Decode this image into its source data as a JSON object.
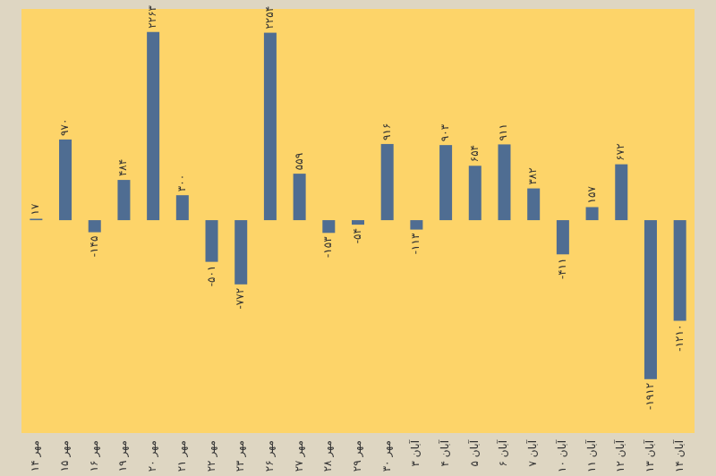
{
  "chart_data": {
    "type": "bar",
    "categories": [
      "۱۴ مهر",
      "۱۵ مهر",
      "۱۶ مهر",
      "۱۹ مهر",
      "۲۰ مهر",
      "۲۱ مهر",
      "۲۲ مهر",
      "۲۳ مهر",
      "۲۶ مهر",
      "۲۷ مهر",
      "۲۸ مهر",
      "۲۹ مهر",
      "۳۰ مهر",
      "۳ آبان",
      "۴ آبان",
      "۵ آبان",
      "۶ آبان",
      "۷ آبان",
      "۱۰ آبان",
      "۱۱ آبان",
      "۱۲ آبان",
      "۱۳ آبان",
      "۱۴ آبان"
    ],
    "values": [
      17,
      970,
      -145,
      484,
      2263,
      300,
      -501,
      -772,
      2254,
      559,
      -153,
      -54,
      916,
      -113,
      903,
      654,
      911,
      382,
      -411,
      157,
      672,
      -1912,
      -1210
    ],
    "value_labels": [
      "۱۷",
      "۹۷۰",
      "-۱۴۵",
      "۴۸۴",
      "۲۲۶۳",
      "۳۰۰",
      "-۵۰۱",
      "-۷۷۲",
      "۲۲۵۴",
      "۵۵۹",
      "-۱۵۳",
      "-۵۴",
      "۹۱۶",
      "-۱۱۳",
      "۹۰۳",
      "۶۵۴",
      "۹۱۱",
      "۳۸۲",
      "-۴۱۱",
      "۱۵۷",
      "۶۷۲",
      "-۱۹۱۲",
      "-۱۲۱۰"
    ],
    "color": "#4f6d92",
    "ylim": [
      -2560,
      2540
    ]
  }
}
